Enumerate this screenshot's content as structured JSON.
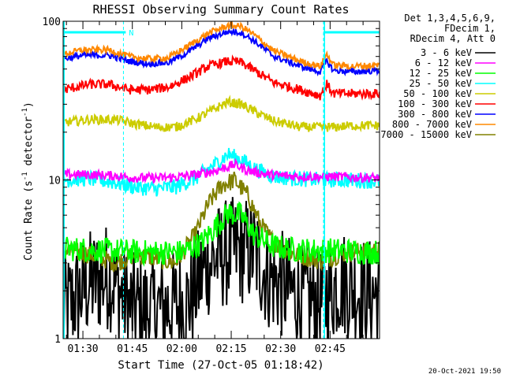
{
  "chart_data": {
    "type": "line",
    "title": "RHESSI Observing Summary Count Rates",
    "xlabel": "Start Time (27-Oct-05 01:18:42)",
    "ylabel": "Count Rate (s⁻¹ detector⁻¹)",
    "ylabel_main": "Count Rate (s",
    "ylabel_mid": " detector",
    "ylabel_end": ")",
    "ylabel_sup": "-1",
    "yscale": "log",
    "ylim": [
      1,
      100
    ],
    "xlim_min": [
      84,
      180
    ],
    "xtick_minutes": [
      90,
      105,
      120,
      135,
      150,
      165
    ],
    "xtick_labels": [
      "01:30",
      "01:45",
      "02:00",
      "02:15",
      "02:30",
      "02:45"
    ],
    "ytick_values": [
      1,
      10,
      100
    ],
    "ytick_labels": [
      "1",
      "10",
      "100"
    ],
    "info_lines": [
      "Det 1,3,4,5,6,9,",
      "FDecim 1,",
      "RDecim 4, Att 0"
    ],
    "flags": {
      "night_bars": [
        [
          84,
          103
        ],
        [
          163,
          180
        ]
      ],
      "night_label": "N",
      "dashed_lines": [
        102.3,
        163,
        180
      ],
      "solid_lines": [
        84.3,
        163.3
      ]
    },
    "series": [
      {
        "name": "3 - 6 keV",
        "color": "#000000",
        "points": [
          [
            84,
            1.5
          ],
          [
            92,
            2.2
          ],
          [
            98,
            2.5
          ],
          [
            104,
            1.6
          ],
          [
            110,
            1.5
          ],
          [
            116,
            1.6
          ],
          [
            122,
            1.7
          ],
          [
            128,
            3.0
          ],
          [
            134,
            3.5
          ],
          [
            138,
            3.6
          ],
          [
            142,
            3.5
          ],
          [
            146,
            2.5
          ],
          [
            150,
            2.2
          ],
          [
            156,
            1.8
          ],
          [
            162,
            1.7
          ],
          [
            168,
            2.3
          ],
          [
            174,
            2.0
          ],
          [
            180,
            1.9
          ]
        ],
        "noise": 0.35
      },
      {
        "name": "6 - 12 keV",
        "color": "#ff00ff",
        "points": [
          [
            84,
            10.8
          ],
          [
            92,
            10.8
          ],
          [
            100,
            10.6
          ],
          [
            106,
            10.3
          ],
          [
            112,
            10.3
          ],
          [
            118,
            10.4
          ],
          [
            124,
            10.8
          ],
          [
            130,
            11.4
          ],
          [
            136,
            12.5
          ],
          [
            140,
            11.5
          ],
          [
            146,
            10.8
          ],
          [
            152,
            10.6
          ],
          [
            160,
            10.5
          ],
          [
            166,
            10.5
          ],
          [
            172,
            10.4
          ],
          [
            180,
            10.3
          ]
        ],
        "noise": 0.03
      },
      {
        "name": "12 - 25 keV",
        "color": "#00ff00",
        "points": [
          [
            84,
            3.7
          ],
          [
            96,
            3.6
          ],
          [
            108,
            3.5
          ],
          [
            120,
            3.5
          ],
          [
            126,
            4.0
          ],
          [
            130,
            5.0
          ],
          [
            134,
            6.2
          ],
          [
            138,
            6.0
          ],
          [
            142,
            4.5
          ],
          [
            148,
            3.8
          ],
          [
            156,
            3.6
          ],
          [
            166,
            3.6
          ],
          [
            180,
            3.5
          ]
        ],
        "noise": 0.08
      },
      {
        "name": "25 - 50 keV",
        "color": "#00ffff",
        "points": [
          [
            84,
            10.0
          ],
          [
            92,
            10.2
          ],
          [
            100,
            9.6
          ],
          [
            106,
            9.0
          ],
          [
            112,
            8.8
          ],
          [
            118,
            9.0
          ],
          [
            124,
            10.2
          ],
          [
            130,
            12.5
          ],
          [
            134,
            14.5
          ],
          [
            138,
            13.5
          ],
          [
            142,
            11.8
          ],
          [
            148,
            10.5
          ],
          [
            154,
            10.2
          ],
          [
            162,
            10.0
          ],
          [
            170,
            10.0
          ],
          [
            180,
            9.8
          ]
        ],
        "noise": 0.05
      },
      {
        "name": "50 - 100 keV",
        "color": "#cccc00",
        "points": [
          [
            84,
            23
          ],
          [
            92,
            24
          ],
          [
            100,
            24
          ],
          [
            106,
            22.5
          ],
          [
            112,
            21.5
          ],
          [
            118,
            21.5
          ],
          [
            124,
            24
          ],
          [
            130,
            28
          ],
          [
            134,
            31
          ],
          [
            138,
            30
          ],
          [
            142,
            27
          ],
          [
            148,
            23.5
          ],
          [
            156,
            21.5
          ],
          [
            166,
            21.5
          ],
          [
            172,
            22
          ],
          [
            180,
            22
          ]
        ],
        "noise": 0.03
      },
      {
        "name": "100 - 300 keV",
        "color": "#ff0000",
        "points": [
          [
            84,
            37
          ],
          [
            92,
            40
          ],
          [
            98,
            40
          ],
          [
            104,
            37
          ],
          [
            110,
            37
          ],
          [
            116,
            38.5
          ],
          [
            122,
            44
          ],
          [
            128,
            52
          ],
          [
            134,
            56
          ],
          [
            138,
            55
          ],
          [
            142,
            49
          ],
          [
            148,
            41
          ],
          [
            156,
            37
          ],
          [
            162,
            34
          ],
          [
            164,
            40
          ],
          [
            166,
            35
          ],
          [
            172,
            35
          ],
          [
            180,
            35
          ]
        ],
        "noise": 0.03
      },
      {
        "name": "300 - 800 keV",
        "color": "#0000ff",
        "points": [
          [
            84,
            58
          ],
          [
            90,
            61
          ],
          [
            98,
            61
          ],
          [
            104,
            56
          ],
          [
            110,
            54
          ],
          [
            116,
            55
          ],
          [
            122,
            64
          ],
          [
            128,
            78
          ],
          [
            134,
            86
          ],
          [
            138,
            85
          ],
          [
            142,
            75
          ],
          [
            148,
            60
          ],
          [
            156,
            52
          ],
          [
            162,
            48
          ],
          [
            164,
            56
          ],
          [
            166,
            49
          ],
          [
            172,
            48
          ],
          [
            180,
            49
          ]
        ],
        "noise": 0.02
      },
      {
        "name": "800 - 7000 keV",
        "color": "#ff8800",
        "points": [
          [
            84,
            62
          ],
          [
            90,
            66
          ],
          [
            98,
            66
          ],
          [
            104,
            60
          ],
          [
            110,
            58
          ],
          [
            116,
            59
          ],
          [
            122,
            70
          ],
          [
            128,
            84
          ],
          [
            134,
            94
          ],
          [
            138,
            93
          ],
          [
            142,
            82
          ],
          [
            148,
            65
          ],
          [
            156,
            56
          ],
          [
            162,
            52
          ],
          [
            164,
            62
          ],
          [
            166,
            53
          ],
          [
            172,
            52
          ],
          [
            180,
            53
          ]
        ],
        "noise": 0.02
      },
      {
        "name": "7000 - 15000 keV",
        "color": "#808000",
        "points": [
          [
            84,
            3.6
          ],
          [
            92,
            3.4
          ],
          [
            100,
            3.0
          ],
          [
            106,
            3.4
          ],
          [
            112,
            3.2
          ],
          [
            118,
            3.0
          ],
          [
            124,
            4.5
          ],
          [
            128,
            7.0
          ],
          [
            132,
            9.2
          ],
          [
            136,
            10.0
          ],
          [
            140,
            8.0
          ],
          [
            144,
            5.2
          ],
          [
            148,
            4.0
          ],
          [
            154,
            3.4
          ],
          [
            162,
            3.1
          ],
          [
            170,
            3.5
          ],
          [
            180,
            3.6
          ]
        ],
        "noise": 0.06
      }
    ],
    "legend_placement": "right",
    "grid": false
  },
  "footer": {
    "timestamp": "20-Oct-2021 19:50"
  }
}
